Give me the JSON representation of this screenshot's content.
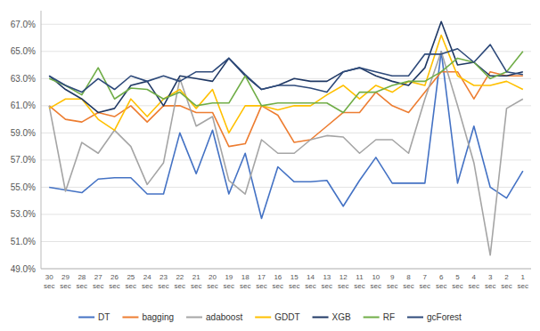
{
  "chart_data": {
    "type": "line",
    "categories": [
      "30 sec",
      "29 sec",
      "28 sec",
      "27 sec",
      "26 sec",
      "25 sec",
      "24 sec",
      "23 sec",
      "22 sec",
      "21 sec",
      "20 sec",
      "19 sec",
      "18 sec",
      "17 sec",
      "16 sec",
      "15 sec",
      "14 sec",
      "13 sec",
      "12 sec",
      "11 sec",
      "10 sec",
      "9 sec",
      "8 sec",
      "7 sec",
      "6 sec",
      "5 sec",
      "4 sec",
      "3 sec",
      "2 sec",
      "1 sec"
    ],
    "series": [
      {
        "name": "DT",
        "color": "#4472C4",
        "values": [
          55.0,
          54.8,
          54.6,
          55.6,
          55.7,
          55.7,
          54.5,
          54.5,
          59.0,
          56.0,
          59.2,
          54.5,
          57.5,
          52.7,
          56.5,
          55.4,
          55.4,
          55.5,
          53.6,
          55.5,
          57.2,
          55.3,
          55.3,
          55.3,
          65.0,
          55.3,
          59.5,
          55.0,
          54.2,
          56.2
        ]
      },
      {
        "name": "bagging",
        "color": "#ED7D31",
        "values": [
          61.0,
          60.0,
          59.8,
          60.5,
          60.2,
          61.0,
          59.8,
          61.0,
          61.0,
          60.5,
          60.5,
          58.0,
          58.2,
          61.0,
          60.3,
          58.3,
          58.5,
          59.5,
          60.5,
          60.5,
          62.0,
          61.0,
          60.5,
          62.0,
          63.5,
          63.5,
          61.5,
          63.5,
          63.2,
          63.2
        ]
      },
      {
        "name": "adaboost",
        "color": "#A5A5A5",
        "values": [
          61.0,
          54.7,
          58.3,
          57.5,
          59.2,
          58.0,
          55.2,
          56.8,
          63.0,
          59.5,
          60.2,
          55.5,
          54.5,
          58.5,
          57.5,
          57.5,
          58.5,
          58.8,
          58.7,
          57.5,
          58.5,
          58.5,
          57.5,
          61.5,
          65.0,
          61.0,
          56.8,
          50.0,
          60.8,
          61.5
        ]
      },
      {
        "name": "GDDT",
        "color": "#FFC000",
        "values": [
          60.8,
          61.5,
          61.5,
          60.0,
          59.2,
          61.5,
          60.2,
          61.5,
          62.2,
          60.8,
          62.2,
          59.0,
          61.0,
          61.0,
          60.7,
          61.0,
          61.0,
          61.8,
          62.5,
          61.5,
          62.5,
          62.0,
          62.8,
          62.5,
          66.2,
          63.2,
          62.5,
          62.5,
          62.8,
          62.2
        ]
      },
      {
        "name": "XGB",
        "color": "#1F3864",
        "values": [
          63.2,
          62.2,
          61.5,
          60.5,
          60.8,
          62.5,
          62.8,
          61.0,
          63.2,
          63.0,
          62.8,
          64.5,
          63.2,
          62.2,
          62.5,
          63.0,
          62.8,
          62.8,
          63.5,
          63.8,
          63.2,
          62.8,
          62.5,
          63.8,
          67.2,
          64.0,
          64.2,
          63.2,
          63.2,
          63.5
        ]
      },
      {
        "name": "RF",
        "color": "#70AD47",
        "values": [
          63.0,
          62.5,
          61.8,
          63.8,
          61.5,
          62.3,
          62.2,
          61.5,
          62.0,
          61.0,
          61.2,
          61.2,
          63.2,
          61.0,
          61.2,
          61.2,
          61.2,
          61.2,
          60.5,
          62.0,
          62.0,
          62.5,
          62.8,
          62.8,
          63.5,
          64.5,
          64.2,
          63.0,
          63.5,
          65.0
        ]
      },
      {
        "name": "gcForest",
        "color": "#2E4A7A",
        "values": [
          63.2,
          62.5,
          62.0,
          63.0,
          62.2,
          63.2,
          62.8,
          63.2,
          62.8,
          63.5,
          63.5,
          64.5,
          63.3,
          62.2,
          62.5,
          62.5,
          62.3,
          62.0,
          63.5,
          63.8,
          63.5,
          63.2,
          63.2,
          64.8,
          64.8,
          65.2,
          64.2,
          65.5,
          63.5,
          63.3
        ]
      }
    ],
    "ylim": [
      49.0,
      68.0
    ],
    "yticks": [
      {
        "value": 49.0,
        "label": "49.0%"
      },
      {
        "value": 51.0,
        "label": "51.0%"
      },
      {
        "value": 53.0,
        "label": "53.0%"
      },
      {
        "value": 55.0,
        "label": "55.0%"
      },
      {
        "value": 57.0,
        "label": "57.0%"
      },
      {
        "value": 59.0,
        "label": "59.0%"
      },
      {
        "value": 61.0,
        "label": "61.0%"
      },
      {
        "value": 63.0,
        "label": "63.0%"
      },
      {
        "value": 65.0,
        "label": "65.0%"
      },
      {
        "value": 67.0,
        "label": "67.0%"
      }
    ],
    "grid": true,
    "legend": "bottom"
  }
}
